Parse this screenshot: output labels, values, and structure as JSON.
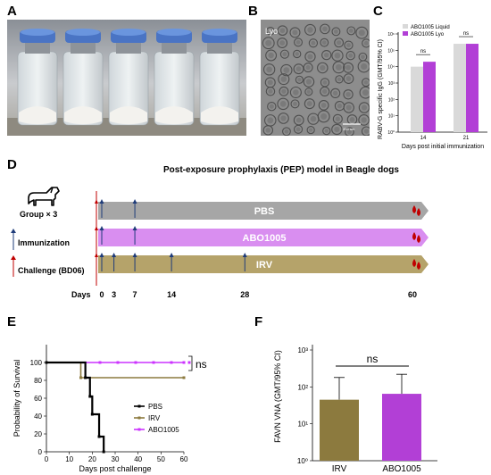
{
  "panels": {
    "a": "A",
    "b": "B",
    "c": "C",
    "d": "D",
    "e": "E",
    "f": "F"
  },
  "panel_b": {
    "label": "Lyo",
    "scalebar": "200 nm"
  },
  "panel_c": {
    "chart_data": {
      "type": "bar",
      "ylabel": "RABV-G specific IgG (GMT/95% CI)",
      "xlabel": "Days post initial immunization",
      "categories": [
        "14",
        "21"
      ],
      "series": [
        {
          "name": "ABO1005 Liquid",
          "color": "#d9d9d9",
          "values": [
            10000,
            250000
          ]
        },
        {
          "name": "ABO1005 Lyo",
          "color": "#b23fd6",
          "values": [
            20000,
            250000
          ]
        }
      ],
      "ytick_labels": [
        "10⁰",
        "10¹",
        "10²",
        "10³",
        "10⁴",
        "10⁵",
        "10⁶"
      ],
      "significance": [
        "ns",
        "ns"
      ]
    }
  },
  "panel_d": {
    "title": "Post-exposure prophylaxis (PEP) model in Beagle dogs",
    "group": "Group × 3",
    "legend_immunization": "Immunization",
    "legend_challenge": "Challenge (BD06)",
    "days_label": "Days",
    "day_ticks": [
      "0",
      "3",
      "7",
      "14",
      "28",
      "60"
    ],
    "bars": [
      {
        "label": "PBS",
        "color": "#a6a6a6",
        "immunization_days": [
          0,
          7
        ]
      },
      {
        "label": "ABO1005",
        "color": "#d98ef0",
        "immunization_days": [
          0,
          7
        ]
      },
      {
        "label": "IRV",
        "color": "#b5a36a",
        "immunization_days": [
          0,
          3,
          7,
          14,
          28
        ]
      }
    ]
  },
  "panel_e": {
    "chart_data": {
      "type": "line",
      "ylabel": "Probability of Survival",
      "xlabel": "Days post challenge",
      "x_ticks": [
        "0",
        "10",
        "20",
        "30",
        "40",
        "50",
        "60"
      ],
      "y_ticks": [
        "0",
        "20",
        "40",
        "60",
        "80",
        "100"
      ],
      "significance": "ns",
      "series": [
        {
          "name": "PBS",
          "color": "#000000",
          "points": [
            [
              0,
              100
            ],
            [
              17,
              100
            ],
            [
              17,
              83
            ],
            [
              19,
              83
            ],
            [
              19,
              62
            ],
            [
              20,
              62
            ],
            [
              20,
              42
            ],
            [
              23,
              42
            ],
            [
              23,
              17
            ],
            [
              25,
              17
            ],
            [
              25,
              0
            ]
          ]
        },
        {
          "name": "IRV",
          "color": "#8c7a3e",
          "points": [
            [
              0,
              100
            ],
            [
              15,
              100
            ],
            [
              15,
              83
            ],
            [
              60,
              83
            ]
          ]
        },
        {
          "name": "ABO1005",
          "color": "#cc33ff",
          "points": [
            [
              0,
              100
            ],
            [
              60,
              100
            ]
          ]
        }
      ]
    }
  },
  "panel_f": {
    "chart_data": {
      "type": "bar",
      "ylabel": "FAVN VNA (GMT/95% CI)",
      "categories": [
        "IRV",
        "ABO1005"
      ],
      "values": [
        45,
        65
      ],
      "upper_ci": [
        180,
        220
      ],
      "colors": [
        "#8c7a3e",
        "#b23fd6"
      ],
      "ytick_labels": [
        "10⁰",
        "10¹",
        "10²",
        "10³"
      ],
      "significance": "ns"
    }
  }
}
